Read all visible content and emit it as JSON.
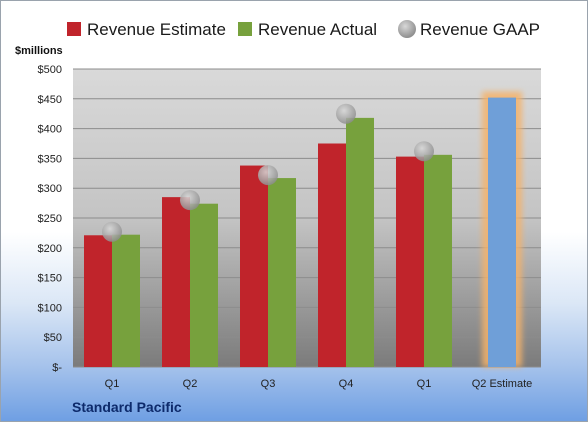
{
  "company": "Standard Pacific",
  "chart_data": {
    "type": "bar",
    "ylabel": "$millions",
    "ylim": [
      0,
      500
    ],
    "ytick_step": 50,
    "ytick_labels": [
      "$-",
      "$50",
      "$100",
      "$150",
      "$200",
      "$250",
      "$300",
      "$350",
      "$400",
      "$450",
      "$500"
    ],
    "grid": true,
    "legend_position": "top",
    "categories": [
      "Q1",
      "Q2",
      "Q3",
      "Q4",
      "Q1",
      "Q2 Estimate"
    ],
    "series": [
      {
        "name": "Revenue Estimate",
        "color": "#c0242b",
        "values": [
          221,
          285,
          338,
          375,
          353,
          452
        ]
      },
      {
        "name": "Revenue Actual",
        "color": "#77a13d",
        "values": [
          222,
          274,
          317,
          418,
          356,
          null
        ]
      },
      {
        "name": "Revenue GAAP",
        "color": "#a9a9a9",
        "marker": "circle",
        "values": [
          227,
          280,
          322,
          425,
          362,
          null
        ]
      }
    ],
    "highlight": {
      "category_index": 5,
      "bar_color": "#6f9fd8",
      "glow_color": "#f4b26a"
    }
  }
}
